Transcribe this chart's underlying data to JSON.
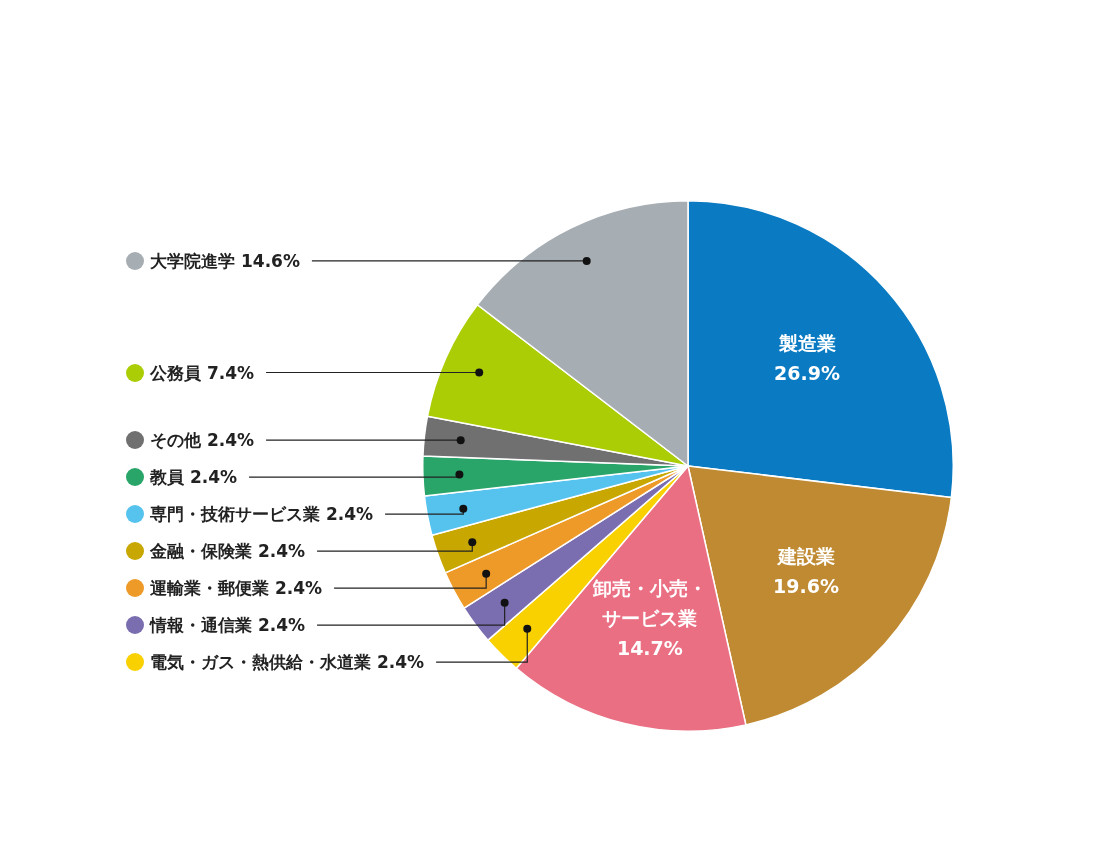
{
  "chart_data": {
    "type": "pie",
    "categories": [
      "製造業",
      "建設業",
      "卸売・小売・サービス業",
      "電気・ガス・熱供給・水道業",
      "情報・通信業",
      "運輸業・郵便業",
      "金融・保険業",
      "専門・技術サービス業",
      "教員",
      "その他",
      "公務員",
      "大学院進学"
    ],
    "values": [
      26.9,
      19.6,
      14.7,
      2.4,
      2.4,
      2.4,
      2.4,
      2.4,
      2.4,
      2.4,
      7.4,
      14.6
    ],
    "value_labels": [
      "26.9%",
      "19.6%",
      "14.7%",
      "2.4%",
      "2.4%",
      "2.4%",
      "2.4%",
      "2.4%",
      "2.4%",
      "2.4%",
      "7.4%",
      "14.6%"
    ],
    "legend": "left",
    "colors": [
      "#0a7bc2",
      "#bf8a32",
      "#ea6f83",
      "#f9d000",
      "#7a6db0",
      "#ee9a28",
      "#c8a800",
      "#56c3ef",
      "#2aa56a",
      "#707070",
      "#aacd06",
      "#a6adb3"
    ]
  }
}
